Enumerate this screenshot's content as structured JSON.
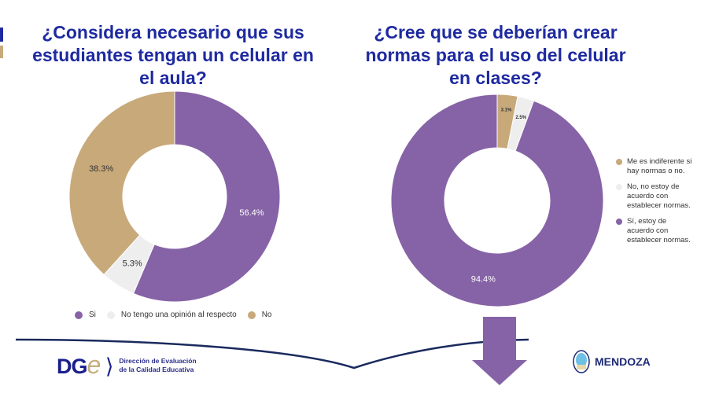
{
  "chart_data": [
    {
      "type": "pie",
      "variant": "donut",
      "title": "¿Considera necesario que sus estudiantes tengan un celular en el aula?",
      "categories": [
        "Si",
        "No tengo una opinión al respecto",
        "No"
      ],
      "values": [
        56.4,
        5.3,
        38.3
      ],
      "labels": [
        "56.4%",
        "5.3%",
        "38.3%"
      ],
      "colors": [
        "#8663a6",
        "#eeeeee",
        "#c8a97a"
      ],
      "legend_position": "bottom"
    },
    {
      "type": "pie",
      "variant": "donut",
      "title": "¿Cree que se deberían crear normas para el uso del celular en clases?",
      "categories": [
        "Me es indiferente si hay normas o no.",
        "No, no estoy de acuerdo con establecer normas.",
        "Sí, estoy de acuerdo con establecer normas."
      ],
      "values": [
        3.1,
        2.5,
        94.4
      ],
      "labels": [
        "3.1%",
        "2.5%",
        "94.4%"
      ],
      "colors": [
        "#c8a97a",
        "#eeeeee",
        "#8663a6"
      ],
      "legend_position": "right"
    }
  ],
  "footer": {
    "dge_logo": "DGe",
    "dge_line1": "Dirección de Evaluación",
    "dge_line2": "de la Calidad Educativa",
    "mendoza": "MENDOZA"
  },
  "colors": {
    "title": "#1e2aa0",
    "arrow": "#8663a6",
    "curve": "#1a2a5e"
  }
}
